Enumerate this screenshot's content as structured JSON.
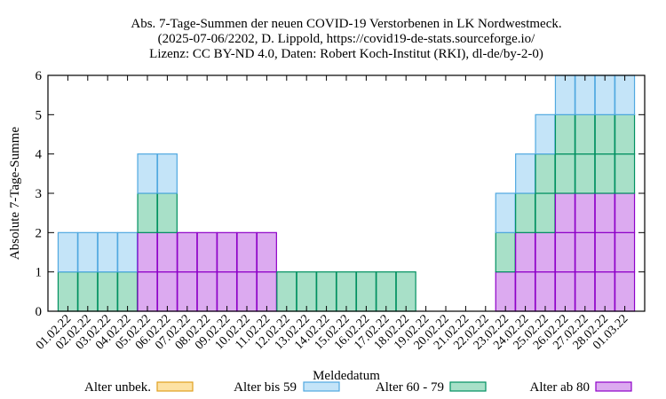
{
  "title": {
    "line1": "Abs. 7-Tage-Summen der neuen COVID-19 Verstorbenen in LK Nordwestmeck.",
    "line2": "(2025-07-06/2202, D. Lippold, https://covid19-de-stats.sourceforge.io/",
    "line3": "Lizenz: CC BY-ND 4.0, Daten: Robert Koch-Institut (RKI), dl-de/by-2-0)"
  },
  "chart_data": {
    "type": "bar",
    "stacked": true,
    "xlabel": "Meldedatum",
    "ylabel": "Absolute 7-Tage-Summe",
    "ylim": [
      0,
      6
    ],
    "yticks": [
      0,
      1,
      2,
      3,
      4,
      5,
      6
    ],
    "grid": false,
    "legend_position": "bottom",
    "categories": [
      "01.02.22",
      "02.02.22",
      "03.02.22",
      "04.02.22",
      "05.02.22",
      "06.02.22",
      "07.02.22",
      "08.02.22",
      "09.02.22",
      "10.02.22",
      "11.02.22",
      "12.02.22",
      "13.02.22",
      "14.02.22",
      "15.02.22",
      "16.02.22",
      "17.02.22",
      "18.02.22",
      "19.02.22",
      "20.02.22",
      "21.02.22",
      "22.02.22",
      "23.02.22",
      "24.02.22",
      "25.02.22",
      "26.02.22",
      "27.02.22",
      "28.02.22",
      "01.03.22"
    ],
    "series": [
      {
        "name": "Alter unbek.",
        "fill": "#fde2a4",
        "stroke": "#e0a020",
        "values": [
          0,
          0,
          0,
          0,
          0,
          0,
          0,
          0,
          0,
          0,
          0,
          0,
          0,
          0,
          0,
          0,
          0,
          0,
          0,
          0,
          0,
          0,
          0,
          0,
          0,
          0,
          0,
          0,
          0
        ]
      },
      {
        "name": "Alter ab 80",
        "fill": "#dcaaf0",
        "stroke": "#8e00c8",
        "values": [
          0,
          0,
          0,
          0,
          2,
          2,
          2,
          2,
          2,
          2,
          2,
          0,
          0,
          0,
          0,
          0,
          0,
          0,
          0,
          0,
          0,
          0,
          1,
          2,
          2,
          3,
          3,
          3,
          3
        ]
      },
      {
        "name": "Alter 60 - 79",
        "fill": "#a8e0c8",
        "stroke": "#009060",
        "values": [
          1,
          1,
          1,
          1,
          1,
          1,
          0,
          0,
          0,
          0,
          0,
          1,
          1,
          1,
          1,
          1,
          1,
          1,
          0,
          0,
          0,
          0,
          1,
          1,
          2,
          2,
          2,
          2,
          2
        ]
      },
      {
        "name": "Alter bis 59",
        "fill": "#c4e4f8",
        "stroke": "#50a8e0",
        "values": [
          1,
          1,
          1,
          1,
          1,
          1,
          0,
          0,
          0,
          0,
          0,
          0,
          0,
          0,
          0,
          0,
          0,
          0,
          0,
          0,
          0,
          0,
          1,
          1,
          1,
          1,
          1,
          1,
          1
        ]
      }
    ],
    "legend_order": [
      "Alter unbek.",
      "Alter bis 59",
      "Alter 60 - 79",
      "Alter ab 80"
    ]
  }
}
